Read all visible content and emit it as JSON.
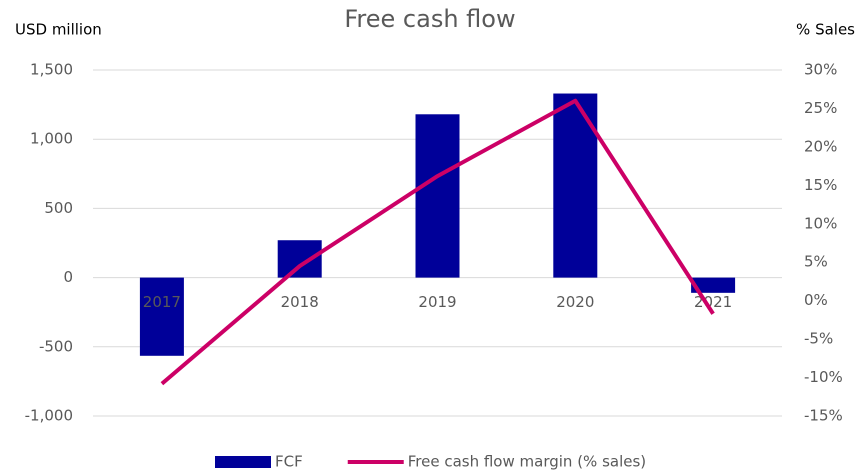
{
  "chart_data": {
    "type": "bar_line",
    "title": "Free cash flow",
    "y_label": "USD million",
    "y2_label": "% Sales",
    "categories": [
      "2017",
      "2018",
      "2019",
      "2020",
      "2021"
    ],
    "series": [
      {
        "name": "FCF",
        "type": "bar",
        "color": "#000099",
        "values": [
          -565,
          270,
          1180,
          1330,
          -110
        ]
      },
      {
        "name": "Free cash flow margin (% sales)",
        "type": "line",
        "axis": "y2",
        "color": "#cc0066",
        "values": [
          -10.8,
          4.5,
          16.2,
          26,
          -1.7
        ]
      }
    ],
    "ylim": [
      -1000,
      1500
    ],
    "yticks": [
      {
        "value": -1000,
        "label": "-1,000"
      },
      -500,
      0,
      500,
      {
        "value": 1000,
        "label": "1,000"
      },
      {
        "value": 1500,
        "label": "1,500"
      }
    ],
    "y2lim": [
      -15,
      30
    ],
    "y2ticks": [
      {
        "value": -15,
        "label": "-15%"
      },
      {
        "value": -10,
        "label": "-10%"
      },
      {
        "value": -5,
        "label": "-5%"
      },
      {
        "value": 0,
        "label": "0%"
      },
      {
        "value": 5,
        "label": "5%"
      },
      {
        "value": 10,
        "label": "10%"
      },
      {
        "value": 15,
        "label": "15%"
      },
      {
        "value": 20,
        "label": "20%"
      },
      {
        "value": 25,
        "label": "25%"
      },
      {
        "value": 30,
        "label": "30%"
      }
    ],
    "grid": true,
    "legend": "bottom"
  }
}
